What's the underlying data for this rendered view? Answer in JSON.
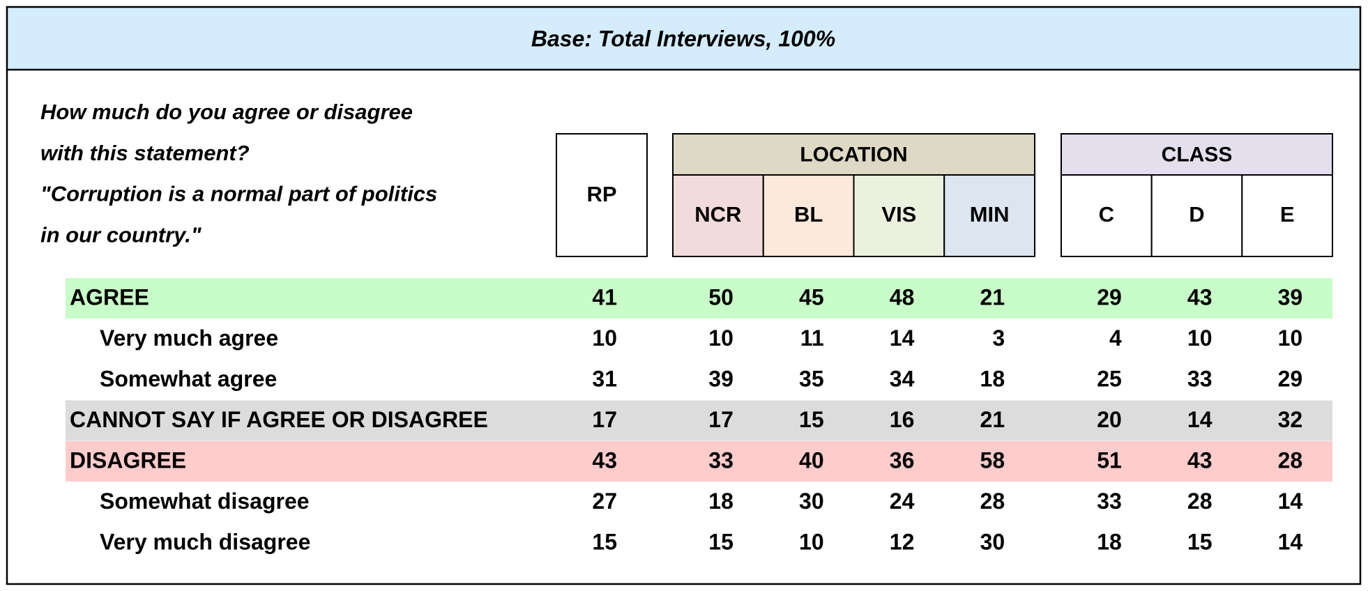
{
  "header": {
    "title": "Base: Total Interviews, 100%"
  },
  "question": [
    "How much do you agree or disagree",
    "with this statement?",
    "\"Corruption is a normal part of politics",
    "in our country.\""
  ],
  "columns": {
    "single": {
      "label": "RP"
    },
    "groups": [
      {
        "label": "LOCATION",
        "color": "#ddd9c4",
        "subs": [
          {
            "label": "NCR",
            "color": "#f2dcdb"
          },
          {
            "label": "BL",
            "color": "#fde9d9"
          },
          {
            "label": "VIS",
            "color": "#ebf1de"
          },
          {
            "label": "MIN",
            "color": "#dce6f1"
          }
        ]
      },
      {
        "label": "CLASS",
        "color": "#e4dfec",
        "subs": [
          {
            "label": "C",
            "color": "#ffffff"
          },
          {
            "label": "D",
            "color": "#ffffff"
          },
          {
            "label": "E",
            "color": "#ffffff"
          }
        ]
      }
    ]
  },
  "table": {
    "rows": [
      {
        "label": "AGREE",
        "color": "#c8fcc8",
        "values": [
          41,
          50,
          45,
          48,
          21,
          29,
          43,
          39
        ]
      },
      {
        "label": "Very much agree",
        "values": [
          10,
          10,
          11,
          14,
          3,
          4,
          10,
          10
        ]
      },
      {
        "label": "Somewhat agree",
        "values": [
          31,
          39,
          35,
          34,
          18,
          25,
          33,
          29
        ]
      },
      {
        "label": "CANNOT SAY IF AGREE OR DISAGREE",
        "color": "#dcdcdc",
        "values": [
          17,
          17,
          15,
          16,
          21,
          20,
          14,
          32
        ]
      },
      {
        "label": "DISAGREE",
        "color": "#ffcccc",
        "values": [
          43,
          33,
          40,
          36,
          58,
          51,
          43,
          28
        ]
      },
      {
        "label": "Somewhat disagree",
        "values": [
          27,
          18,
          30,
          24,
          28,
          33,
          28,
          14
        ]
      },
      {
        "label": "Very much disagree",
        "values": [
          15,
          15,
          10,
          12,
          30,
          18,
          15,
          14
        ]
      }
    ]
  }
}
